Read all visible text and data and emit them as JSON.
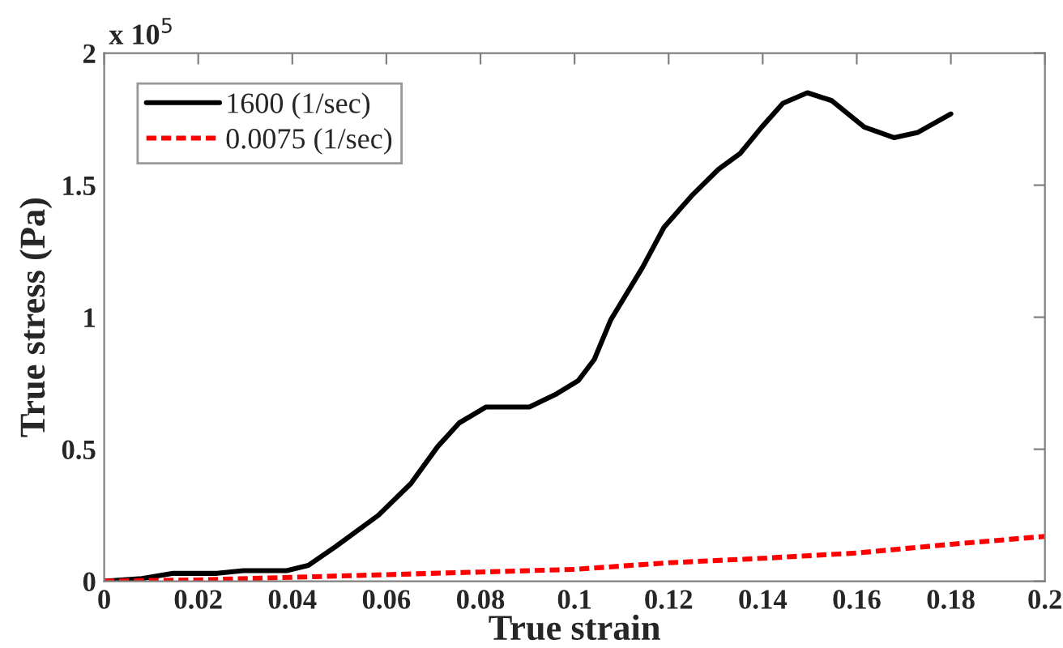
{
  "chart_data": {
    "type": "line",
    "xlabel": "True strain",
    "ylabel": "True stress (Pa)",
    "annotations": [
      "x 10$^{5}$"
    ],
    "xlim": [
      0,
      0.2
    ],
    "ylim": [
      0,
      2
    ],
    "xticks": [
      0,
      0.02,
      0.04,
      0.06,
      0.08,
      0.1,
      0.12,
      0.14,
      0.16,
      0.18,
      0.2
    ],
    "yticks": [
      0,
      0.5,
      1,
      1.5,
      2
    ],
    "grid": false,
    "legend": "top left",
    "marker": "none",
    "series": [
      {
        "name": "1600 (1/sec)",
        "color": "#000000",
        "line_style": "solid",
        "x": [
          0,
          0.008,
          0.0147,
          0.024,
          0.0296,
          0.0388,
          0.0434,
          0.0491,
          0.0583,
          0.0652,
          0.0709,
          0.0755,
          0.0812,
          0.0904,
          0.0962,
          0.1008,
          0.1042,
          0.1077,
          0.1145,
          0.119,
          0.1249,
          0.1306,
          0.1352,
          0.1398,
          0.1443,
          0.1495,
          0.1547,
          0.1616,
          0.1679,
          0.173,
          0.18
        ],
        "values": [
          0,
          0.01,
          0.03,
          0.03,
          0.04,
          0.04,
          0.06,
          0.13,
          0.25,
          0.37,
          0.51,
          0.6,
          0.66,
          0.66,
          0.71,
          0.76,
          0.84,
          0.99,
          1.19,
          1.34,
          1.46,
          1.56,
          1.62,
          1.72,
          1.81,
          1.85,
          1.82,
          1.72,
          1.68,
          1.7,
          1.77
        ]
      },
      {
        "name": "0.0075 (1/sec)",
        "color": "#ff0000",
        "line_style": "dashed",
        "x": [
          0,
          0.02,
          0.04,
          0.06,
          0.08,
          0.1,
          0.12,
          0.14,
          0.16,
          0.18,
          0.2
        ],
        "values": [
          0,
          0.005,
          0.015,
          0.025,
          0.035,
          0.045,
          0.07,
          0.087,
          0.107,
          0.14,
          0.17
        ]
      }
    ]
  }
}
